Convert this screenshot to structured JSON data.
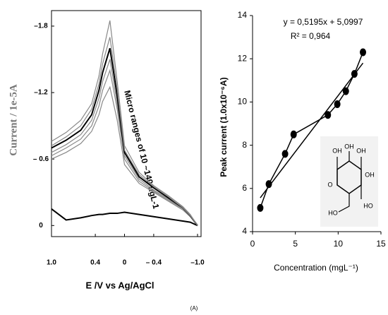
{
  "chart_data": [
    {
      "type": "line",
      "y_label": "Current / 1e-5A",
      "x_label": "E /V vs Ag/AgCl",
      "annotation": "Micro ranges of 10 ~140 ugL-1",
      "x": [
        1.0,
        0.8,
        0.6,
        0.45,
        0.35,
        0.3,
        0.2,
        0.1,
        0.0,
        -0.2,
        -0.4,
        -0.6,
        -0.8,
        -0.9,
        -1.0
      ],
      "xlim": [
        1.0,
        -1.0
      ],
      "xticks": [
        {
          "value": 1.0,
          "label": "1.0"
        },
        0.4,
        0,
        {
          "value": -0.4,
          "label": "– 0.4"
        },
        {
          "value": -1.0,
          "label": "–1.0"
        }
      ],
      "ylim": [
        0.1,
        -1.94
      ],
      "yticks": [
        0,
        {
          "value": -0.6,
          "label": "– 0.6"
        },
        {
          "value": -1.2,
          "label": "–1.2"
        },
        {
          "value": -1.8,
          "label": "–1.8"
        }
      ],
      "series": [
        {
          "color": "#000000",
          "values": [
            -0.15,
            -0.05,
            -0.07,
            -0.09,
            -0.1,
            -0.1,
            -0.11,
            -0.11,
            -0.12,
            -0.1,
            -0.08,
            -0.06,
            -0.04,
            -0.03,
            0
          ]
        },
        {
          "color": "#888888",
          "values": [
            -0.6,
            -0.66,
            -0.74,
            -0.85,
            -1.0,
            -1.12,
            -1.25,
            -0.95,
            -0.55,
            -0.38,
            -0.3,
            -0.22,
            -0.14,
            -0.08,
            0
          ]
        },
        {
          "color": "#888888",
          "values": [
            -0.63,
            -0.7,
            -0.78,
            -0.9,
            -1.08,
            -1.22,
            -1.4,
            -1.05,
            -0.6,
            -0.4,
            -0.31,
            -0.23,
            -0.15,
            -0.08,
            0
          ]
        },
        {
          "color": "#888888",
          "values": [
            -0.66,
            -0.73,
            -0.82,
            -0.95,
            -1.15,
            -1.3,
            -1.5,
            -1.1,
            -0.63,
            -0.42,
            -0.32,
            -0.24,
            -0.15,
            -0.08,
            0
          ]
        },
        {
          "color": "#000000",
          "values": [
            -0.7,
            -0.77,
            -0.86,
            -1.0,
            -1.22,
            -1.38,
            -1.6,
            -1.17,
            -0.66,
            -0.44,
            -0.34,
            -0.25,
            -0.16,
            -0.09,
            0
          ]
        },
        {
          "color": "#888888",
          "values": [
            -0.72,
            -0.8,
            -0.9,
            -1.05,
            -1.28,
            -1.46,
            -1.7,
            -1.23,
            -0.68,
            -0.46,
            -0.35,
            -0.26,
            -0.16,
            -0.09,
            0
          ]
        },
        {
          "color": "#888888",
          "values": [
            -0.76,
            -0.84,
            -0.95,
            -1.1,
            -1.35,
            -1.55,
            -1.85,
            -1.3,
            -0.72,
            -0.48,
            -0.36,
            -0.27,
            -0.17,
            -0.1,
            0
          ]
        }
      ]
    },
    {
      "type": "scatter",
      "x_label": "Concentration (mgL⁻¹)",
      "y_label": "Peak current (1.0x10⁻⁶A)",
      "x": [
        0.9,
        1.9,
        3.8,
        4.8,
        8.8,
        9.9,
        10.9,
        11.9,
        12.9
      ],
      "values": [
        5.1,
        6.2,
        7.6,
        8.5,
        9.4,
        9.9,
        10.5,
        11.3,
        12.3
      ],
      "color": "#000000",
      "xlim": [
        0,
        15
      ],
      "xticks": [
        0,
        5,
        10,
        15
      ],
      "ylim": [
        4,
        14
      ],
      "yticks": [
        4,
        6,
        8,
        10,
        12,
        14
      ],
      "fit": {
        "slope": 0.5195,
        "intercept": 5.0997,
        "label": "y = 0,5195x + 5,0997",
        "r2": 0.964,
        "r2_label": "R² = 0,964"
      },
      "structure": {
        "labels": [
          "OH",
          "OH",
          "O",
          "OH",
          "HO",
          "HO",
          "OH"
        ]
      }
    }
  ],
  "caption": "(A)"
}
